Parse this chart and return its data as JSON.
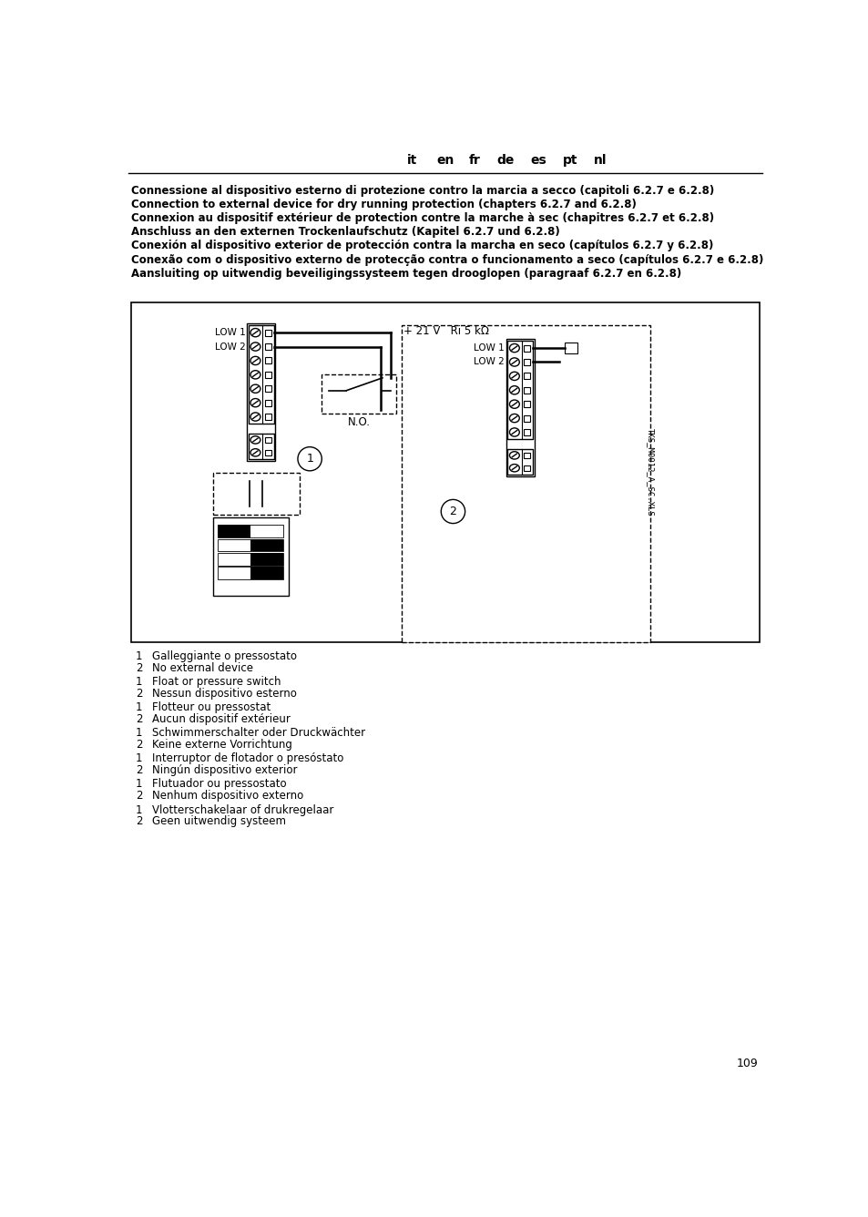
{
  "header_langs": [
    "it",
    "en",
    "fr",
    "de",
    "es",
    "pt",
    "nl"
  ],
  "header_lang_x": [
    430,
    477,
    519,
    562,
    609,
    654,
    697
  ],
  "title_lines": [
    "Connessione al dispositivo esterno di protezione contro la marcia a secco (capitoli 6.2.7 e 6.2.8)",
    "Connection to external device for dry running protection (chapters 6.2.7 and 6.2.8)",
    "Connexion au dispositif extérieur de protection contre la marche à sec (chapitres 6.2.7 et 6.2.8)",
    "Anschluss an den externen Trockenlaufschutz (Kapitel 6.2.7 und 6.2.8)",
    "Conexión al dispositivo exterior de protección contra la marcha en seco (capítulos 6.2.7 y 6.2.8)",
    "Conexão com o dispositivo externo de protecção contra o funcionamento a seco (capítulos 6.2.7 e 6.2.8)",
    "Aansluiting op uitwendig beveiligingssysteem tegen drooglopen (paragraaf 6.2.7 en 6.2.8)"
  ],
  "legend_items": [
    [
      "1",
      "Galleggiante o pressostato"
    ],
    [
      "2",
      "No external device"
    ],
    [
      "1",
      "Float or pressure switch"
    ],
    [
      "2",
      "Nessun dispositivo esterno"
    ],
    [
      "1",
      "Flotteur ou pressostat"
    ],
    [
      "2",
      "Aucun dispositif extérieur"
    ],
    [
      "1",
      "Schwimmerschalter oder Druckwächter"
    ],
    [
      "2",
      "Keine externe Vorrichtung"
    ],
    [
      "1",
      "Interruptor de flotador o presóstato"
    ],
    [
      "2",
      "Ningún dispositivo exterior"
    ],
    [
      "1",
      "Flutuador ou pressostato"
    ],
    [
      "2",
      "Nenhum dispositivo externo"
    ],
    [
      "1",
      "Vlotterschakelaar of drukregelaar"
    ],
    [
      "2",
      "Geen uitwendig systeem"
    ]
  ],
  "page_number": "109",
  "watermark": "TKS_M0012_A_SC.XLS"
}
